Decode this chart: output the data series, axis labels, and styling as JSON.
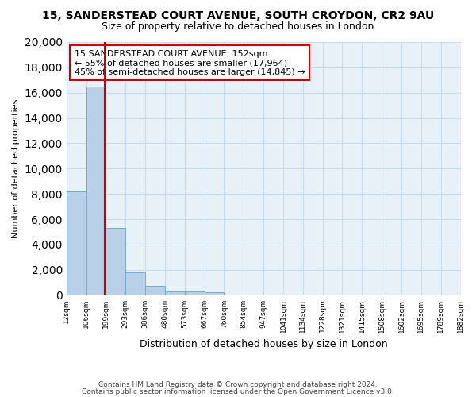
{
  "title": "15, SANDERSTEAD COURT AVENUE, SOUTH CROYDON, CR2 9AU",
  "subtitle": "Size of property relative to detached houses in London",
  "xlabel": "Distribution of detached houses by size in London",
  "ylabel": "Number of detached properties",
  "bar_values": [
    8200,
    16500,
    5300,
    1800,
    750,
    300,
    280,
    200,
    0,
    0,
    0,
    0,
    0,
    0,
    0,
    0,
    0,
    0,
    0,
    0
  ],
  "bar_labels": [
    "12sqm",
    "106sqm",
    "199sqm",
    "293sqm",
    "386sqm",
    "480sqm",
    "573sqm",
    "667sqm",
    "760sqm",
    "854sqm",
    "947sqm",
    "1041sqm",
    "1134sqm",
    "1228sqm",
    "1321sqm",
    "1415sqm",
    "1508sqm",
    "1602sqm",
    "1695sqm",
    "1789sqm",
    "1882sqm"
  ],
  "bar_color": "#b8d0e8",
  "bar_edge_color": "#7aaac8",
  "grid_color": "#c8ddf0",
  "bg_color": "#e8f0f8",
  "red_line_x": 1.45,
  "annotation_title": "15 SANDERSTEAD COURT AVENUE: 152sqm",
  "annotation_line1": "← 55% of detached houses are smaller (17,964)",
  "annotation_line2": "45% of semi-detached houses are larger (14,845) →",
  "annotation_box_color": "#ffffff",
  "annotation_border_color": "#cc0000",
  "red_line_color": "#cc0000",
  "ylim": [
    0,
    20000
  ],
  "yticks": [
    0,
    2000,
    4000,
    6000,
    8000,
    10000,
    12000,
    14000,
    16000,
    18000,
    20000
  ],
  "footer1": "Contains HM Land Registry data © Crown copyright and database right 2024.",
  "footer2": "Contains public sector information licensed under the Open Government Licence v3.0."
}
